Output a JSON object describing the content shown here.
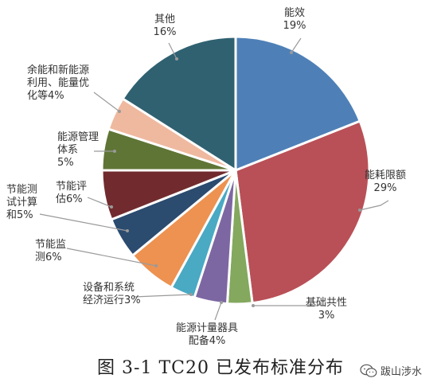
{
  "chart_data": {
    "type": "pie",
    "title": "",
    "slices": [
      {
        "label": [
          "能效",
          "19%"
        ],
        "value": 19,
        "color": "#4e80b7"
      },
      {
        "label": [
          "能耗限额",
          "29%"
        ],
        "value": 29,
        "color": "#b95057"
      },
      {
        "label": [
          "基础共性",
          "3%"
        ],
        "value": 3,
        "color": "#83a85e"
      },
      {
        "label": [
          "能源计量器具",
          "配备4%"
        ],
        "value": 4,
        "color": "#7d67a2"
      },
      {
        "label": [
          "设备和系统",
          "经济运行3%"
        ],
        "value": 3,
        "color": "#4aa9c3"
      },
      {
        "label": [
          "节能监",
          "测6%"
        ],
        "value": 6,
        "color": "#ed9251"
      },
      {
        "label": [
          "节能测",
          "试计算",
          "和5%"
        ],
        "value": 5,
        "color": "#2b4b6f"
      },
      {
        "label": [
          "节能评",
          "估6%"
        ],
        "value": 6,
        "color": "#712b2e"
      },
      {
        "label": [
          "能源管理",
          "体系",
          "5%"
        ],
        "value": 5,
        "color": "#5f7536"
      },
      {
        "label": [
          "余能和新能源",
          "利用、能量优",
          "化等4%"
        ],
        "value": 4,
        "color": "#efb9a0"
      },
      {
        "label": [
          "其他",
          "16%"
        ],
        "value": 16,
        "color": "#2f6171"
      }
    ]
  },
  "caption": "图 3-1 TC20 已发布标准分布",
  "watermark": {
    "text": "跋山涉水",
    "icon": "wechat-icon"
  }
}
